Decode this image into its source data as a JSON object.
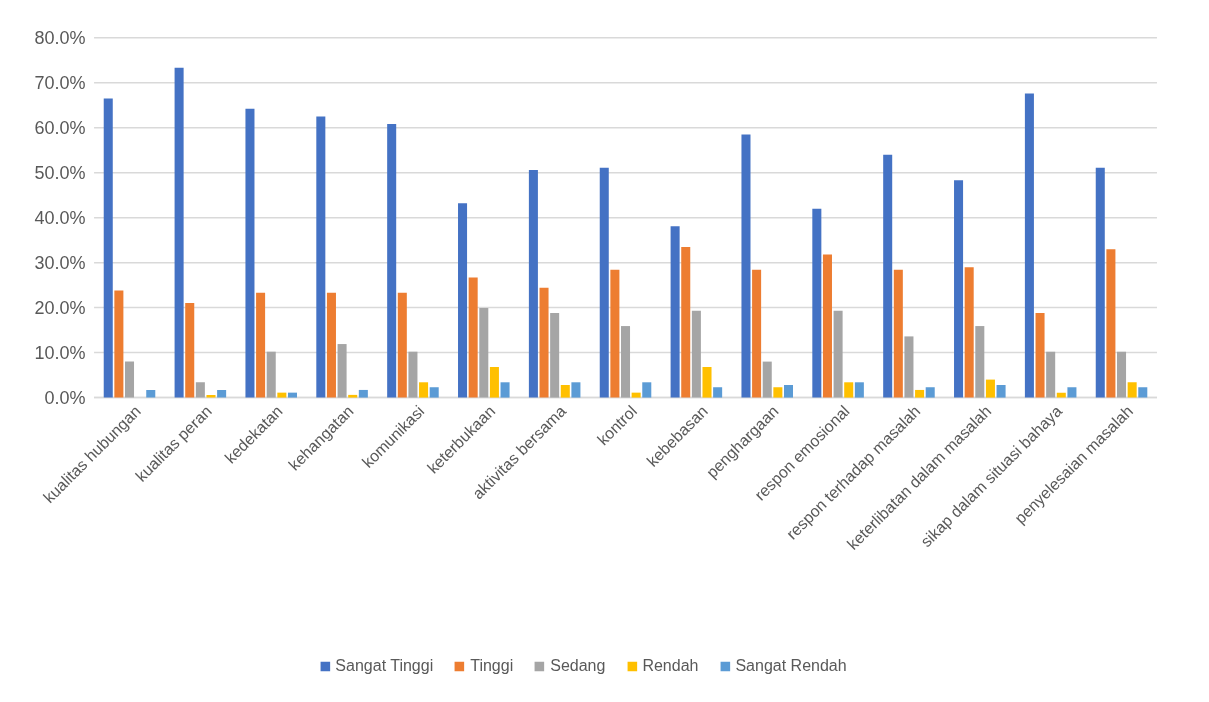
{
  "chart_data": {
    "type": "bar",
    "categories": [
      "kualitas hubungan",
      "kualitas peran",
      "kedekatan",
      "kehangatan",
      "komunikasi",
      "keterbukaan",
      "aktivitas bersama",
      "kontrol",
      "kebebasan",
      "penghargaan",
      "respon emosional",
      "respon terhadap masalah",
      "keterlibatan dalam masalah",
      "sikap dalam situasi bahaya",
      "penyelesaian masalah"
    ],
    "series": [
      {
        "name": "Sangat Tinggi",
        "color": "#4472c4",
        "values": [
          66.5,
          73.3,
          64.2,
          62.5,
          60.8,
          43.2,
          50.6,
          51.1,
          38.1,
          58.5,
          42.0,
          54.0,
          48.3,
          67.6,
          51.1
        ]
      },
      {
        "name": "Tinggi",
        "color": "#ed7d31",
        "values": [
          23.8,
          21.0,
          23.3,
          23.3,
          23.3,
          26.7,
          24.4,
          28.4,
          33.5,
          28.4,
          31.8,
          28.4,
          29.0,
          18.8,
          33.0
        ]
      },
      {
        "name": "Sedang",
        "color": "#a5a5a5",
        "values": [
          8.0,
          3.4,
          10.2,
          11.9,
          10.2,
          19.9,
          18.8,
          15.9,
          19.3,
          8.0,
          19.3,
          13.6,
          15.9,
          10.2,
          10.2
        ]
      },
      {
        "name": "Rendah",
        "color": "#ffc000",
        "values": [
          0,
          0.6,
          1.1,
          0.6,
          3.4,
          6.8,
          2.8,
          1.1,
          6.8,
          2.3,
          3.4,
          1.7,
          4.0,
          1.1,
          3.4
        ]
      },
      {
        "name": "Sangat Rendah",
        "color": "#5b9bd5",
        "values": [
          1.7,
          1.7,
          1.1,
          1.7,
          2.3,
          3.4,
          3.4,
          3.4,
          2.3,
          2.8,
          3.4,
          2.3,
          2.8,
          2.3,
          2.3
        ]
      }
    ],
    "ylim": [
      0,
      80
    ],
    "yticks": [
      {
        "value": 0,
        "label": "0.0%"
      },
      {
        "value": 10,
        "label": "10.0%"
      },
      {
        "value": 20,
        "label": "20.0%"
      },
      {
        "value": 30,
        "label": "30.0%"
      },
      {
        "value": 40,
        "label": "40.0%"
      },
      {
        "value": 50,
        "label": "50.0%"
      },
      {
        "value": 60,
        "label": "60.0%"
      },
      {
        "value": 70,
        "label": "70.0%"
      },
      {
        "value": 80,
        "label": "80.0%"
      }
    ],
    "grid": "y",
    "legend": "bottom"
  }
}
